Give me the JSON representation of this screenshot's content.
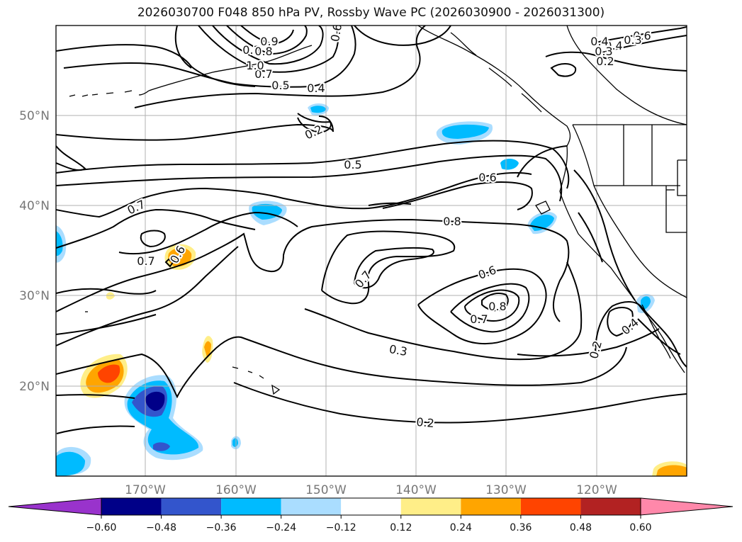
{
  "title": "2026030700 F048 850 hPa PV, Rossby Wave PC (2026030900 - 2026031300)",
  "lat_ticks": [
    "50°N",
    "40°N",
    "30°N",
    "20°N"
  ],
  "lon_ticks": [
    "170°W",
    "160°W",
    "150°W",
    "140°W",
    "130°W",
    "120°W"
  ],
  "colorbar": {
    "tick_labels": [
      "−0.60",
      "−0.48",
      "−0.36",
      "−0.24",
      "−0.12",
      "0.12",
      "0.24",
      "0.36",
      "0.48",
      "0.60"
    ],
    "colors": [
      "#9933cc",
      "#000088",
      "#3355cc",
      "#00bbff",
      "#aaddff",
      "#ffffff",
      "#ffee88",
      "#ffa500",
      "#ff4400",
      "#b22222",
      "#ff88aa"
    ]
  },
  "contour_labels": [
    "0.2",
    "0.3",
    "0.4",
    "0.5",
    "0.6",
    "0.7",
    "0.8",
    "1.0",
    "0.9",
    "0.6",
    "0.3",
    "0.4",
    "0.5",
    "0.6",
    "0.7",
    "0.8",
    "0.7",
    "0.6",
    "0.5",
    "0.4",
    "0.3",
    "0.2",
    "0.2",
    "0.3",
    "0.2",
    "0.4",
    "0.5",
    "0.6",
    "0.7",
    "0.7",
    "0.6",
    "0.6",
    "0.7",
    "0.8"
  ]
}
